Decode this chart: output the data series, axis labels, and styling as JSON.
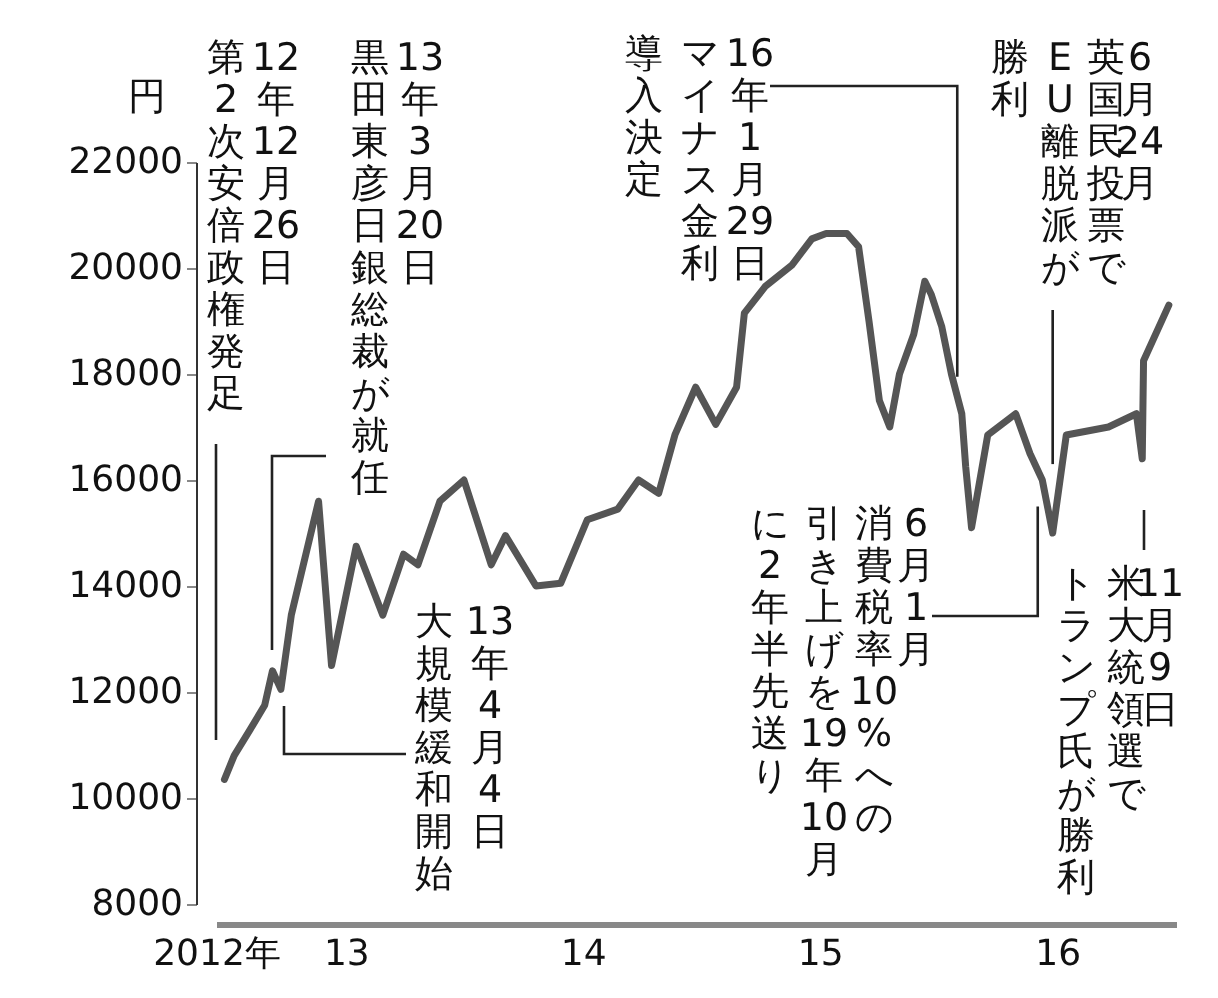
{
  "chart_data": {
    "type": "line",
    "ylabel": "円",
    "color": "#555555",
    "x": [
      "2012-12-26",
      "2013-01-10",
      "2013-02-04",
      "2013-02-26",
      "2013-03-10",
      "2013-03-23",
      "2013-04-08",
      "2013-05-20",
      "2013-06-09",
      "2013-07-17",
      "2013-08-27",
      "2013-09-28",
      "2013-10-20",
      "2013-11-23",
      "2013-12-30",
      "2014-02-10",
      "2014-03-04",
      "2014-04-20",
      "2014-05-28",
      "2014-07-08",
      "2014-08-24",
      "2014-09-25",
      "2014-10-26",
      "2014-11-20",
      "2014-12-22",
      "2015-01-22",
      "2015-02-23",
      "2015-03-07",
      "2015-04-08",
      "2015-05-19",
      "2015-06-19",
      "2015-07-11",
      "2015-08-12",
      "2015-08-30",
      "2015-09-15",
      "2015-10-01",
      "2015-10-17",
      "2015-11-01",
      "2015-11-23",
      "2015-12-10",
      "2015-12-20",
      "2016-01-05",
      "2016-01-20",
      "2016-02-05",
      "2016-02-11",
      "2016-02-20",
      "2016-03-16",
      "2016-04-28",
      "2016-05-20",
      "2016-06-08",
      "2016-06-24",
      "2016-07-15",
      "2016-09-18",
      "2016-10-31",
      "2016-11-09",
      "2016-11-11",
      "2016-12-20"
    ],
    "values": [
      10350,
      10800,
      11300,
      11750,
      12400,
      12050,
      13450,
      15600,
      12500,
      14750,
      13450,
      14600,
      14400,
      15600,
      16000,
      14400,
      14950,
      14000,
      14050,
      15250,
      15450,
      16000,
      15750,
      16850,
      17750,
      17050,
      17750,
      19150,
      19650,
      20050,
      20550,
      20650,
      20650,
      20400,
      19000,
      17500,
      17000,
      18000,
      18750,
      19750,
      19500,
      18900,
      18000,
      17250,
      16250,
      15100,
      16850,
      17250,
      16500,
      16000,
      15000,
      16850,
      17000,
      17250,
      16400,
      18250,
      19300
    ],
    "xlim": [
      "2012-12-13",
      "2016-12-31"
    ],
    "xticks": [
      {
        "value": "2012-12-13",
        "label": "2012年"
      },
      {
        "value": "2013-07-01",
        "label": "13"
      },
      {
        "value": "2014-07-01",
        "label": "14"
      },
      {
        "value": "2015-07-01",
        "label": "15"
      },
      {
        "value": "2016-07-01",
        "label": "16"
      }
    ],
    "ylim": [
      8000,
      22000
    ],
    "yticks": [
      8000,
      10000,
      12000,
      14000,
      16000,
      18000,
      20000,
      22000
    ],
    "annotations": [
      "12年12月26日",
      "第2次安倍政権発足",
      "13年3月20日",
      "黒田東彦日銀総裁が就任",
      "13年4月4日",
      "大規模緩和開始",
      {
        "text": "16年1月29日",
        "x": "2016-01-29",
        "y": 17950
      },
      "マイナス金利",
      "導入決定",
      "6月24月",
      {
        "text": "英国民投票で",
        "x": "2016-06-24",
        "y": 16300
      },
      "EU離脱派が",
      "勝利",
      {
        "text": "6月1月",
        "x": "2016-06-01",
        "y": 15500
      },
      "消費税率10%への",
      "引き上げを19年10月",
      "に2年半先送り",
      "11月9日",
      "米大統領選で",
      "トランプ氏が勝利"
    ]
  }
}
